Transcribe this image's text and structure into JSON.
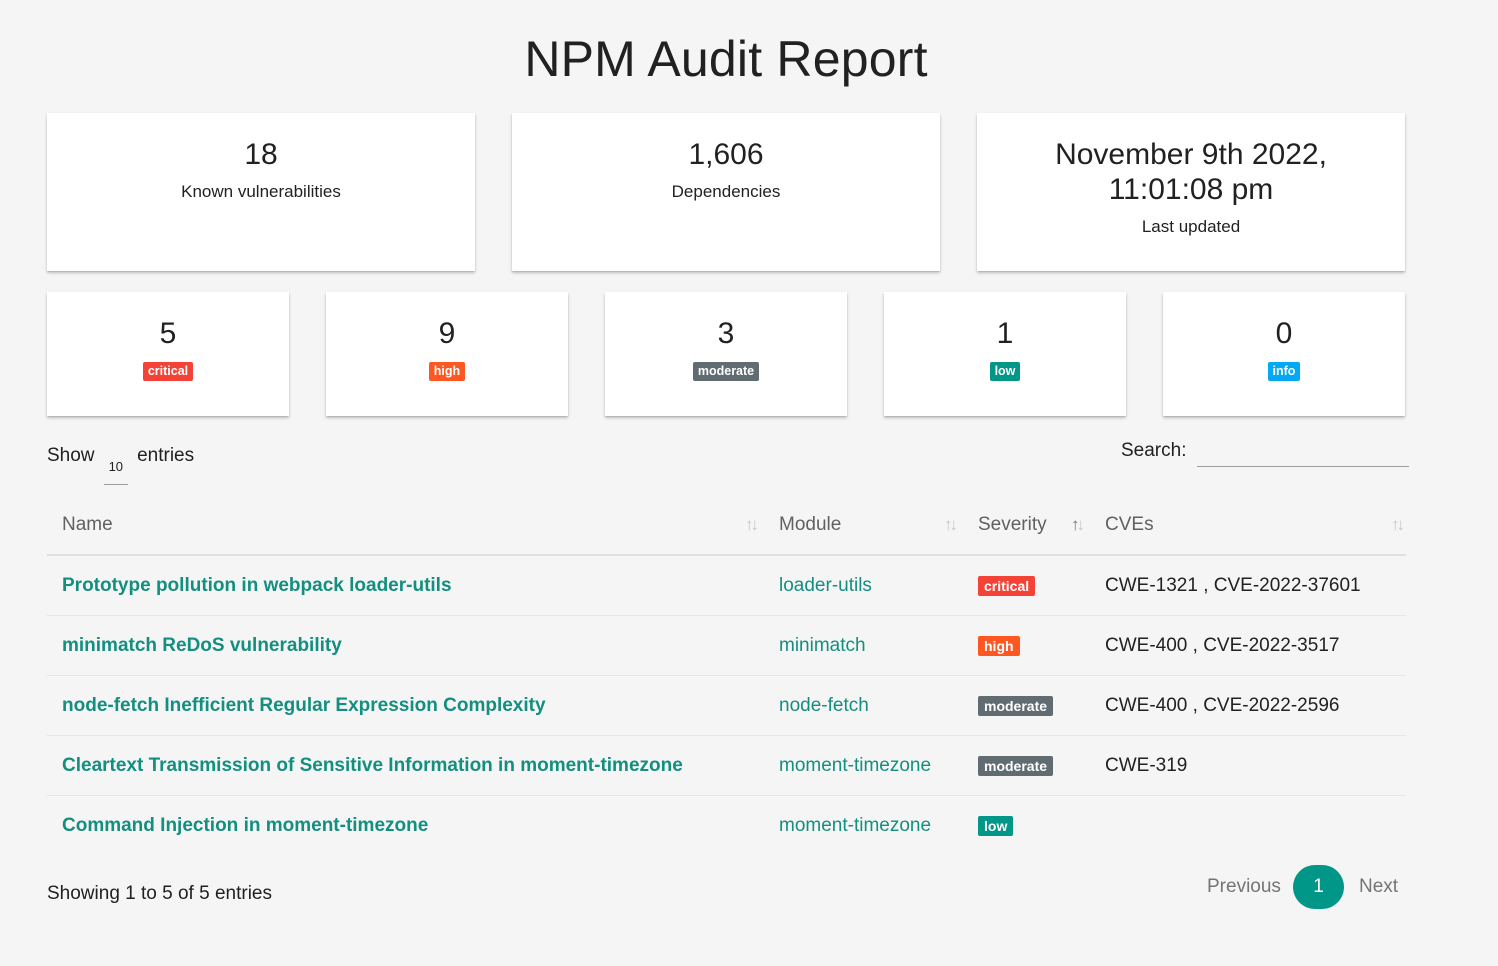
{
  "title": "NPM Audit Report",
  "summary": {
    "vulnerabilities": {
      "value": "18",
      "label": "Known vulnerabilities"
    },
    "dependencies": {
      "value": "1,606",
      "label": "Dependencies"
    },
    "updated": {
      "line1": "November 9th 2022,",
      "line2": "11:01:08 pm",
      "label": "Last updated"
    }
  },
  "severity_counts": [
    {
      "count": "5",
      "label": "critical",
      "color": "#f44336"
    },
    {
      "count": "9",
      "label": "high",
      "color": "#ff5722"
    },
    {
      "count": "3",
      "label": "moderate",
      "color": "#616b72"
    },
    {
      "count": "1",
      "label": "low",
      "color": "#009688"
    },
    {
      "count": "0",
      "label": "info",
      "color": "#03a9f4"
    }
  ],
  "controls": {
    "show_label": "Show",
    "entries_value": "10",
    "entries_label": "entries",
    "search_label": "Search:",
    "search_value": ""
  },
  "table": {
    "headers": [
      "Name",
      "Module",
      "Severity",
      "CVEs"
    ],
    "rows": [
      {
        "name": "Prototype pollution in webpack loader-utils",
        "module": "loader-utils",
        "severity": "critical",
        "cves": "CWE-1321 , CVE-2022-37601"
      },
      {
        "name": "minimatch ReDoS vulnerability",
        "module": "minimatch",
        "severity": "high",
        "cves": "CWE-400 , CVE-2022-3517"
      },
      {
        "name": "node-fetch Inefficient Regular Expression Complexity",
        "module": "node-fetch",
        "severity": "moderate",
        "cves": "CWE-400 , CVE-2022-2596"
      },
      {
        "name": "Cleartext Transmission of Sensitive Information in moment-timezone",
        "module": "moment-timezone",
        "severity": "moderate",
        "cves": "CWE-319"
      },
      {
        "name": "Command Injection in moment-timezone",
        "module": "moment-timezone",
        "severity": "low",
        "cves": ""
      }
    ]
  },
  "footer": {
    "showing": "Showing 1 to 5 of 5 entries",
    "previous": "Previous",
    "current_page": "1",
    "next": "Next"
  },
  "colors": {
    "accent": "#009688",
    "link": "#138f80"
  }
}
